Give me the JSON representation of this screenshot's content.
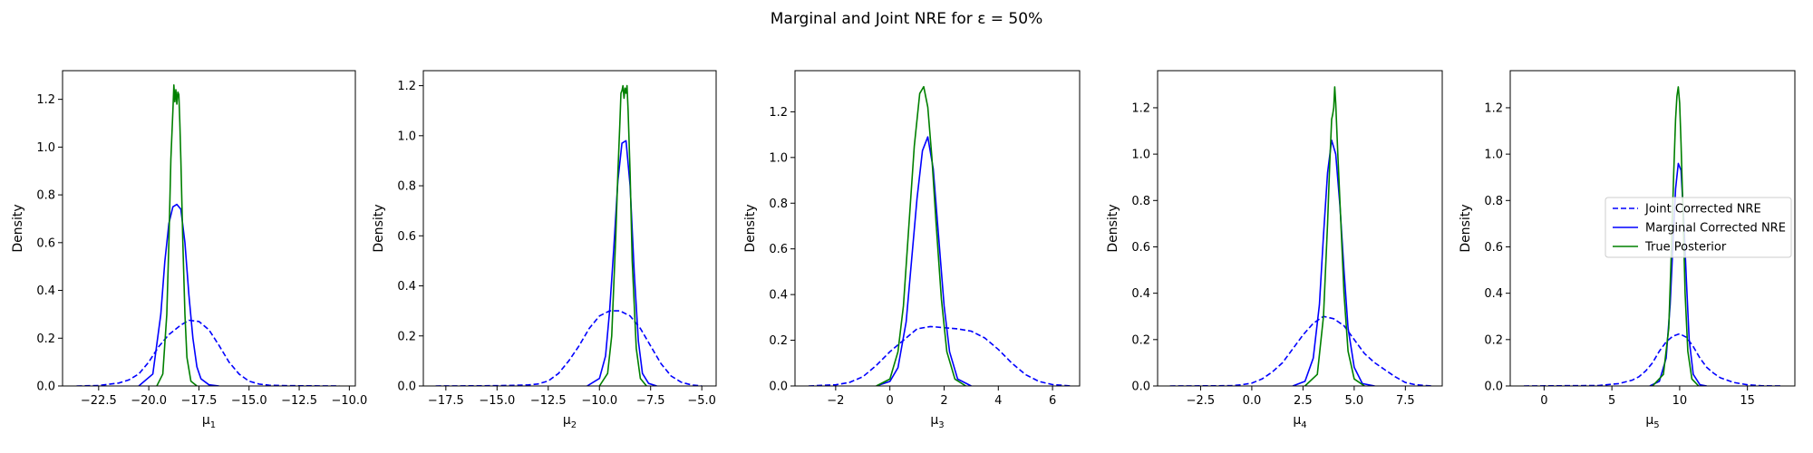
{
  "figure": {
    "title": "Marginal and Joint NRE for ε = 50%"
  },
  "colors": {
    "joint": "#0000ff",
    "marginal": "#0000ff",
    "true": "#008000"
  },
  "chart_data": [
    {
      "type": "line",
      "xlabel": "μ1",
      "xlabel_main": "μ",
      "xlabel_sub": "1",
      "ylabel": "Density",
      "xlim": [
        -24.3,
        -9.7
      ],
      "ylim": [
        0,
        1.32
      ],
      "xticks": [
        -22.5,
        -20.0,
        -17.5,
        -15.0,
        -12.5,
        -10.0
      ],
      "xtick_labels": [
        "−22.5",
        "−20.0",
        "−17.5",
        "−15.0",
        "−12.5",
        "−10.0"
      ],
      "yticks": [
        0,
        0.2,
        0.4,
        0.6,
        0.8,
        1.0,
        1.2
      ],
      "ytick_labels": [
        "0.0",
        "0.2",
        "0.4",
        "0.6",
        "0.8",
        "1.0",
        "1.2"
      ],
      "series": [
        {
          "name": "Joint Corrected NRE",
          "style": "dashed",
          "x": [
            -23.6,
            -22.5,
            -21.5,
            -21.0,
            -20.5,
            -20.0,
            -19.5,
            -19.0,
            -18.7,
            -18.4,
            -18.0,
            -17.5,
            -17.0,
            -16.5,
            -16.0,
            -15.5,
            -15.0,
            -14.5,
            -14.0,
            -13.0,
            -10.5
          ],
          "y": [
            0.0,
            0.002,
            0.012,
            0.025,
            0.05,
            0.1,
            0.165,
            0.215,
            0.235,
            0.255,
            0.275,
            0.27,
            0.235,
            0.17,
            0.1,
            0.05,
            0.02,
            0.008,
            0.003,
            0.001,
            0.0
          ]
        },
        {
          "name": "Marginal Corrected NRE",
          "style": "solid",
          "x": [
            -20.5,
            -19.8,
            -19.4,
            -19.2,
            -19.0,
            -18.8,
            -18.6,
            -18.4,
            -18.2,
            -18.0,
            -17.8,
            -17.6,
            -17.4,
            -17.0,
            -16.5
          ],
          "y": [
            0.0,
            0.05,
            0.3,
            0.52,
            0.68,
            0.75,
            0.76,
            0.74,
            0.6,
            0.38,
            0.2,
            0.08,
            0.03,
            0.005,
            0.0
          ]
        },
        {
          "name": "True Posterior",
          "style": "solid",
          "x": [
            -19.6,
            -19.3,
            -19.1,
            -19.0,
            -18.9,
            -18.8,
            -18.75,
            -18.7,
            -18.65,
            -18.6,
            -18.55,
            -18.5,
            -18.45,
            -18.4,
            -18.3,
            -18.2,
            -18.1,
            -17.9,
            -17.6
          ],
          "y": [
            0.0,
            0.05,
            0.3,
            0.6,
            0.95,
            1.15,
            1.26,
            1.19,
            1.24,
            1.18,
            1.23,
            1.22,
            1.1,
            0.95,
            0.6,
            0.3,
            0.12,
            0.02,
            0.0
          ]
        }
      ]
    },
    {
      "type": "line",
      "xlabel": "μ2",
      "xlabel_main": "μ",
      "xlabel_sub": "2",
      "ylabel": "Density",
      "xlim": [
        -18.6,
        -4.3
      ],
      "ylim": [
        0,
        1.26
      ],
      "xticks": [
        -17.5,
        -15.0,
        -12.5,
        -10.0,
        -7.5,
        -5.0
      ],
      "xtick_labels": [
        "−17.5",
        "−15.0",
        "−12.5",
        "−10.0",
        "−7.5",
        "−5.0"
      ],
      "yticks": [
        0,
        0.2,
        0.4,
        0.6,
        0.8,
        1.0,
        1.2
      ],
      "ytick_labels": [
        "0.0",
        "0.2",
        "0.4",
        "0.6",
        "0.8",
        "1.0",
        "1.2"
      ],
      "series": [
        {
          "name": "Joint Corrected NRE",
          "style": "dashed",
          "x": [
            -18.0,
            -15.0,
            -13.5,
            -13.0,
            -12.5,
            -12.0,
            -11.5,
            -11.0,
            -10.5,
            -10.0,
            -9.5,
            -9.0,
            -8.5,
            -8.0,
            -7.5,
            -7.0,
            -6.5,
            -6.0,
            -5.5,
            -5.0
          ],
          "y": [
            0.0,
            0.001,
            0.004,
            0.008,
            0.02,
            0.05,
            0.1,
            0.16,
            0.23,
            0.28,
            0.3,
            0.3,
            0.28,
            0.23,
            0.16,
            0.09,
            0.04,
            0.015,
            0.004,
            0.0
          ]
        },
        {
          "name": "Marginal Corrected NRE",
          "style": "solid",
          "x": [
            -10.6,
            -10.0,
            -9.7,
            -9.5,
            -9.3,
            -9.1,
            -8.9,
            -8.7,
            -8.5,
            -8.3,
            -8.1,
            -7.9,
            -7.6,
            -7.2
          ],
          "y": [
            0.0,
            0.03,
            0.12,
            0.3,
            0.55,
            0.82,
            0.97,
            0.98,
            0.8,
            0.45,
            0.18,
            0.05,
            0.01,
            0.0
          ]
        },
        {
          "name": "True Posterior",
          "style": "solid",
          "x": [
            -10.0,
            -9.6,
            -9.4,
            -9.2,
            -9.1,
            -9.0,
            -8.95,
            -8.9,
            -8.85,
            -8.8,
            -8.75,
            -8.7,
            -8.65,
            -8.6,
            -8.5,
            -8.4,
            -8.2,
            -8.0,
            -7.7
          ],
          "y": [
            0.0,
            0.05,
            0.2,
            0.6,
            0.85,
            1.05,
            1.17,
            1.18,
            1.2,
            1.15,
            1.19,
            1.17,
            1.2,
            1.1,
            0.85,
            0.5,
            0.15,
            0.03,
            0.0
          ]
        }
      ]
    },
    {
      "type": "line",
      "xlabel": "μ3",
      "xlabel_main": "μ",
      "xlabel_sub": "3",
      "ylabel": "Density",
      "xlim": [
        -3.5,
        7.0
      ],
      "ylim": [
        0,
        1.38
      ],
      "xticks": [
        -2,
        0,
        2,
        4,
        6
      ],
      "xtick_labels": [
        "−2",
        "0",
        "2",
        "4",
        "6"
      ],
      "yticks": [
        0,
        0.2,
        0.4,
        0.6,
        0.8,
        1.0,
        1.2
      ],
      "ytick_labels": [
        "0.0",
        "0.2",
        "0.4",
        "0.6",
        "0.8",
        "1.0",
        "1.2"
      ],
      "series": [
        {
          "name": "Joint Corrected NRE",
          "style": "dashed",
          "x": [
            -3.0,
            -2.0,
            -1.5,
            -1.0,
            -0.5,
            0.0,
            0.5,
            1.0,
            1.5,
            2.0,
            2.5,
            3.0,
            3.5,
            4.0,
            4.5,
            5.0,
            5.5,
            6.0,
            6.7
          ],
          "y": [
            0.0,
            0.005,
            0.015,
            0.04,
            0.09,
            0.15,
            0.2,
            0.25,
            0.26,
            0.255,
            0.25,
            0.24,
            0.21,
            0.16,
            0.1,
            0.05,
            0.02,
            0.006,
            0.0
          ]
        },
        {
          "name": "Marginal Corrected NRE",
          "style": "solid",
          "x": [
            -0.5,
            0.0,
            0.3,
            0.6,
            0.8,
            1.0,
            1.2,
            1.4,
            1.6,
            1.8,
            2.0,
            2.2,
            2.5,
            3.0
          ],
          "y": [
            0.0,
            0.02,
            0.08,
            0.28,
            0.55,
            0.82,
            1.03,
            1.09,
            0.95,
            0.65,
            0.35,
            0.15,
            0.03,
            0.0
          ]
        },
        {
          "name": "True Posterior",
          "style": "solid",
          "x": [
            -0.5,
            0.0,
            0.3,
            0.5,
            0.7,
            0.9,
            1.1,
            1.25,
            1.4,
            1.55,
            1.7,
            1.9,
            2.1,
            2.4,
            2.8
          ],
          "y": [
            0.0,
            0.03,
            0.15,
            0.35,
            0.7,
            1.05,
            1.28,
            1.31,
            1.22,
            1.0,
            0.72,
            0.38,
            0.15,
            0.03,
            0.0
          ]
        }
      ]
    },
    {
      "type": "line",
      "xlabel": "μ4",
      "xlabel_main": "μ",
      "xlabel_sub": "4",
      "ylabel": "Density",
      "xlim": [
        -4.6,
        9.3
      ],
      "ylim": [
        0,
        1.36
      ],
      "xticks": [
        -2.5,
        0.0,
        2.5,
        5.0,
        7.5
      ],
      "xtick_labels": [
        "−2.5",
        "0.0",
        "2.5",
        "5.0",
        "7.5"
      ],
      "yticks": [
        0,
        0.2,
        0.4,
        0.6,
        0.8,
        1.0,
        1.2
      ],
      "ytick_labels": [
        "0.0",
        "0.2",
        "0.4",
        "0.6",
        "0.8",
        "1.0",
        "1.2"
      ],
      "series": [
        {
          "name": "Joint Corrected NRE",
          "style": "dashed",
          "x": [
            -4.0,
            -1.0,
            -0.5,
            0.0,
            0.5,
            1.0,
            1.5,
            2.0,
            2.5,
            3.0,
            3.5,
            4.0,
            4.5,
            5.0,
            5.5,
            6.0,
            6.5,
            7.0,
            7.5,
            8.0,
            8.8
          ],
          "y": [
            0.0,
            0.001,
            0.005,
            0.012,
            0.03,
            0.06,
            0.1,
            0.16,
            0.22,
            0.27,
            0.3,
            0.29,
            0.26,
            0.2,
            0.14,
            0.1,
            0.07,
            0.04,
            0.015,
            0.005,
            0.0
          ]
        },
        {
          "name": "Marginal Corrected NRE",
          "style": "solid",
          "x": [
            2.0,
            2.6,
            3.0,
            3.3,
            3.5,
            3.7,
            3.9,
            4.1,
            4.3,
            4.5,
            4.7,
            5.0,
            5.4,
            6.0
          ],
          "y": [
            0.0,
            0.02,
            0.12,
            0.35,
            0.65,
            0.92,
            1.06,
            1.0,
            0.78,
            0.5,
            0.25,
            0.08,
            0.01,
            0.0
          ]
        },
        {
          "name": "True Posterior",
          "style": "solid",
          "x": [
            2.6,
            3.2,
            3.5,
            3.7,
            3.8,
            3.9,
            3.95,
            4.0,
            4.05,
            4.1,
            4.2,
            4.3,
            4.5,
            4.7,
            5.0,
            5.5
          ],
          "y": [
            0.0,
            0.05,
            0.3,
            0.7,
            0.95,
            1.15,
            1.17,
            1.2,
            1.29,
            1.22,
            1.0,
            0.8,
            0.4,
            0.15,
            0.03,
            0.0
          ]
        }
      ]
    },
    {
      "type": "line",
      "xlabel": "μ5",
      "xlabel_main": "μ",
      "xlabel_sub": "5",
      "ylabel": "Density",
      "xlim": [
        -2.5,
        18.5
      ],
      "ylim": [
        0,
        1.36
      ],
      "xticks": [
        0,
        5,
        10,
        15
      ],
      "xtick_labels": [
        "0",
        "5",
        "10",
        "15"
      ],
      "yticks": [
        0,
        0.2,
        0.4,
        0.6,
        0.8,
        1.0,
        1.2
      ],
      "ytick_labels": [
        "0.0",
        "0.2",
        "0.4",
        "0.6",
        "0.8",
        "1.0",
        "1.2"
      ],
      "legend": {
        "placement": "center-right",
        "entries": [
          "Joint Corrected NRE",
          "Marginal Corrected NRE",
          "True Posterior"
        ]
      },
      "series": [
        {
          "name": "Joint Corrected NRE",
          "style": "dashed",
          "x": [
            -1.5,
            4.0,
            5.5,
            6.5,
            7.0,
            7.5,
            8.0,
            8.5,
            9.0,
            9.5,
            10.0,
            10.5,
            11.0,
            11.5,
            12.0,
            12.5,
            13.0,
            14.0,
            15.0,
            16.0,
            17.5
          ],
          "y": [
            0.0,
            0.002,
            0.01,
            0.025,
            0.04,
            0.065,
            0.1,
            0.15,
            0.19,
            0.215,
            0.225,
            0.21,
            0.17,
            0.12,
            0.08,
            0.055,
            0.035,
            0.015,
            0.005,
            0.001,
            0.0
          ]
        },
        {
          "name": "Marginal Corrected NRE",
          "style": "solid",
          "x": [
            7.8,
            8.5,
            9.0,
            9.3,
            9.5,
            9.7,
            9.9,
            10.1,
            10.3,
            10.5,
            10.7,
            11.0,
            11.5,
            12.0
          ],
          "y": [
            0.0,
            0.02,
            0.12,
            0.35,
            0.6,
            0.85,
            0.96,
            0.93,
            0.72,
            0.45,
            0.2,
            0.05,
            0.005,
            0.0
          ]
        },
        {
          "name": "True Posterior",
          "style": "solid",
          "x": [
            8.0,
            8.8,
            9.2,
            9.4,
            9.55,
            9.7,
            9.8,
            9.9,
            10.0,
            10.1,
            10.25,
            10.4,
            10.6,
            10.9,
            11.4
          ],
          "y": [
            0.0,
            0.05,
            0.25,
            0.6,
            0.9,
            1.15,
            1.25,
            1.29,
            1.22,
            1.05,
            0.75,
            0.4,
            0.15,
            0.03,
            0.0
          ]
        }
      ]
    }
  ]
}
